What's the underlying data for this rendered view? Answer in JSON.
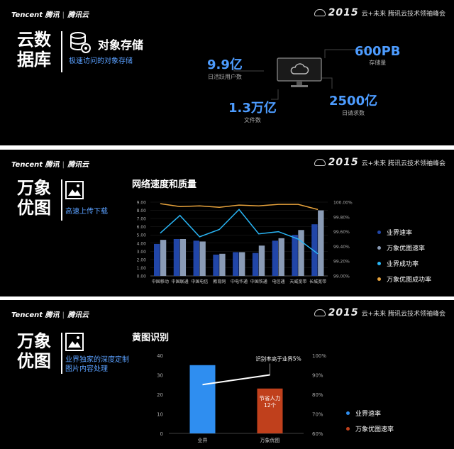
{
  "brand": {
    "tencent": "Tencent 腾讯",
    "cloud": "腾讯云"
  },
  "summit": {
    "year": "2015",
    "text": "云+未来 腾讯云技术领袖峰会"
  },
  "slide1": {
    "title_line1": "云数",
    "title_line2": "据库",
    "product": "对象存储",
    "subtitle": "极速访问的对象存储",
    "metrics": [
      {
        "value": "9.9亿",
        "label": "日活跃用户数"
      },
      {
        "value": "600PB",
        "label": "存储量"
      },
      {
        "value": "1.3万亿",
        "label": "文件数"
      },
      {
        "value": "2500亿",
        "label": "日请求数"
      }
    ]
  },
  "slide2": {
    "title_line1": "万象",
    "title_line2": "优图",
    "subtitle": "高速上传下载",
    "chart_data": {
      "type": "bar",
      "title": "网络速度和质量",
      "categories": [
        "中国移动",
        "中国联通",
        "中国电信",
        "教育网",
        "中电华通",
        "中国铁通",
        "电信通",
        "天威宽带",
        "长城宽带"
      ],
      "series": [
        {
          "name": "业界速率",
          "kind": "bar",
          "axis": "left",
          "color": "#2146a8",
          "values": [
            3.9,
            4.5,
            4.3,
            2.6,
            2.9,
            2.8,
            4.3,
            5.0,
            6.3
          ]
        },
        {
          "name": "万象优图速率",
          "kind": "bar",
          "axis": "left",
          "color": "#8a9bb5",
          "values": [
            4.4,
            4.5,
            4.2,
            2.7,
            2.9,
            3.7,
            4.6,
            5.6,
            8.0
          ]
        },
        {
          "name": "业界成功率",
          "kind": "line",
          "axis": "right",
          "color": "#29b6f6",
          "values": [
            99.58,
            99.82,
            99.53,
            99.63,
            99.9,
            99.57,
            99.6,
            99.5,
            99.3
          ]
        },
        {
          "name": "万象优图成功率",
          "kind": "line",
          "axis": "right",
          "color": "#e8a33c",
          "values": [
            99.98,
            99.94,
            99.95,
            99.93,
            99.96,
            99.95,
            99.97,
            99.97,
            99.9
          ]
        }
      ],
      "ylim_left": [
        0,
        9
      ],
      "yticks_left": [
        "0.00",
        "1.00",
        "2.00",
        "3.00",
        "4.00",
        "5.00",
        "6.00",
        "7.00",
        "8.00",
        "9.00"
      ],
      "ylim_right": [
        99.0,
        100.0
      ],
      "yticks_right": [
        "99.00%",
        "99.20%",
        "99.40%",
        "99.60%",
        "99.80%",
        "100.00%"
      ]
    }
  },
  "slide3": {
    "title_line1": "万象",
    "title_line2": "优图",
    "subtitle_line1": "业界独家的深度定制",
    "subtitle_line2": "图片内容处理",
    "chart_data": {
      "type": "bar",
      "title": "黄图识别",
      "categories": [
        "业界",
        "万象优图"
      ],
      "series": [
        {
          "name": "业界速率",
          "kind": "bar",
          "axis": "left",
          "color": "#2f8ef0",
          "values": [
            35,
            23
          ]
        },
        {
          "name": "识别率",
          "kind": "line",
          "axis": "right",
          "color": "#ffffff",
          "values": [
            85,
            90
          ]
        }
      ],
      "bar_colors": [
        "#2f8ef0",
        "#c0401c"
      ],
      "legend": [
        "业界速率",
        "万象优图速率"
      ],
      "legend_colors": [
        "#2f8ef0",
        "#c0401c"
      ],
      "ylim_left": [
        0,
        40
      ],
      "yticks_left": [
        "0",
        "10",
        "20",
        "30",
        "40"
      ],
      "ylim_right": [
        60,
        100
      ],
      "yticks_right": [
        "60%",
        "70%",
        "80%",
        "90%",
        "100%"
      ],
      "annotation": "识别率高于业界5%",
      "bar_label_line1": "节省人力",
      "bar_label_line2": "12个"
    }
  }
}
